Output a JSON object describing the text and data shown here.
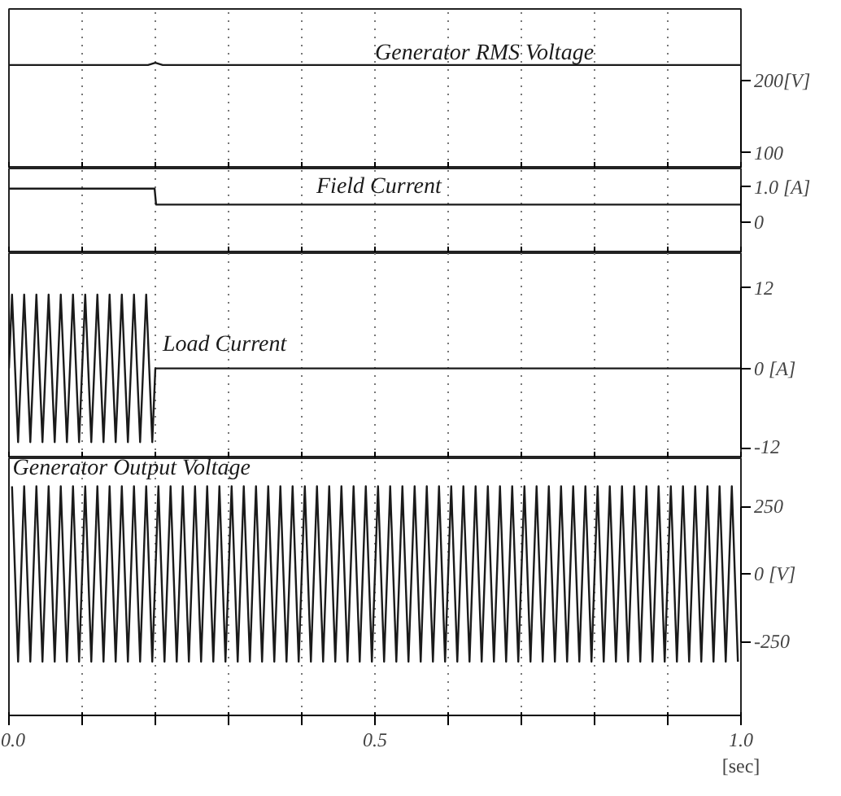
{
  "chart_data": [
    {
      "type": "line",
      "xlim": [
        0,
        1.0
      ],
      "ylim": [
        78,
        300
      ],
      "xticks": [
        {
          "value": 0,
          "label": null
        },
        {
          "value": 0.1,
          "label": null
        },
        {
          "value": 0.2,
          "label": null
        },
        {
          "value": 0.3,
          "label": null
        },
        {
          "value": 0.4,
          "label": null
        },
        {
          "value": 0.5,
          "label": null
        },
        {
          "value": 0.6,
          "label": null
        },
        {
          "value": 0.7,
          "label": null
        },
        {
          "value": 0.8,
          "label": null
        },
        {
          "value": 0.9,
          "label": null
        },
        {
          "value": 1.0,
          "label": null
        }
      ],
      "yticks": [
        100,
        {
          "value": 200,
          "label": "200[V]"
        }
      ],
      "tick_labels": "y",
      "grid": "x",
      "series": [
        {
          "name": "Generator RMS Voltage",
          "color": "#1a1a1a",
          "x": [
            0,
            0.19,
            0.2,
            0.21,
            1.0
          ],
          "values": [
            222,
            222,
            225,
            222,
            222
          ]
        }
      ]
    },
    {
      "type": "line",
      "xlim": [
        0,
        1.0
      ],
      "ylim": [
        -0.87,
        1.52
      ],
      "xticks": [
        {
          "value": 0,
          "label": null
        },
        {
          "value": 0.1,
          "label": null
        },
        {
          "value": 0.2,
          "label": null
        },
        {
          "value": 0.3,
          "label": null
        },
        {
          "value": 0.4,
          "label": null
        },
        {
          "value": 0.5,
          "label": null
        },
        {
          "value": 0.6,
          "label": null
        },
        {
          "value": 0.7,
          "label": null
        },
        {
          "value": 0.8,
          "label": null
        },
        {
          "value": 0.9,
          "label": null
        },
        {
          "value": 1.0,
          "label": null
        }
      ],
      "yticks": [
        0,
        {
          "value": 1.0,
          "label": "1.0 [A]"
        }
      ],
      "tick_labels": "y",
      "grid": "x",
      "series": [
        {
          "name": "Field Current",
          "color": "#1a1a1a",
          "x": [
            0,
            0.199,
            0.201,
            1.0
          ],
          "values": [
            0.95,
            0.95,
            0.5,
            0.5
          ]
        }
      ]
    },
    {
      "type": "line",
      "xlim": [
        0,
        1.0
      ],
      "ylim": [
        -13.4,
        17.2
      ],
      "xticks": [
        {
          "value": 0,
          "label": null
        },
        {
          "value": 0.1,
          "label": null
        },
        {
          "value": 0.2,
          "label": null
        },
        {
          "value": 0.3,
          "label": null
        },
        {
          "value": 0.4,
          "label": null
        },
        {
          "value": 0.5,
          "label": null
        },
        {
          "value": 0.6,
          "label": null
        },
        {
          "value": 0.7,
          "label": null
        },
        {
          "value": 0.8,
          "label": null
        },
        {
          "value": 0.9,
          "label": null
        },
        {
          "value": 1.0,
          "label": null
        }
      ],
      "yticks": [
        -12,
        {
          "value": 0,
          "label": "0 [A]"
        },
        12
      ],
      "tick_labels": "y",
      "grid": "x",
      "series": [
        {
          "name": "Load Current",
          "color": "#1a1a1a",
          "x": [
            0,
            0.0042,
            0.0125,
            0.0208,
            0.0292,
            0.0375,
            0.0458,
            0.0542,
            0.0625,
            0.0708,
            0.0792,
            0.0875,
            0.0958,
            0.1042,
            0.1125,
            0.1208,
            0.1292,
            0.1375,
            0.1458,
            0.1542,
            0.1625,
            0.1708,
            0.1792,
            0.1875,
            0.1958,
            0.2,
            1.0
          ],
          "values": [
            0,
            11,
            -11,
            11,
            -11,
            11,
            -11,
            11,
            -11,
            11,
            -11,
            11,
            -11,
            11,
            -11,
            11,
            -11,
            11,
            -11,
            11,
            -11,
            11,
            -11,
            11,
            -11,
            0,
            0
          ]
        }
      ]
    },
    {
      "type": "line",
      "xlim": [
        0,
        1.0
      ],
      "ylim": [
        -524,
        429
      ],
      "xlabel": "[sec]",
      "xticks": [
        {
          "value": 0,
          "label": "0.0"
        },
        {
          "value": 0.1,
          "label": null
        },
        {
          "value": 0.2,
          "label": null
        },
        {
          "value": 0.3,
          "label": null
        },
        {
          "value": 0.4,
          "label": null
        },
        {
          "value": 0.5,
          "label": "0.5"
        },
        {
          "value": 0.6,
          "label": null
        },
        {
          "value": 0.7,
          "label": null
        },
        {
          "value": 0.8,
          "label": null
        },
        {
          "value": 0.9,
          "label": null
        },
        {
          "value": 1.0,
          "label": "1.0"
        }
      ],
      "yticks": [
        -250,
        {
          "value": 0,
          "label": "0 [V]"
        },
        250
      ],
      "grid": "x",
      "series": [
        {
          "name": "Generator Output Voltage",
          "color": "#1a1a1a",
          "x": [
            0.0042,
            0.0125,
            0.0208,
            0.0292,
            0.0375,
            0.0458,
            0.0542,
            0.0625,
            0.0708,
            0.0792,
            0.0875,
            0.0958,
            0.1042,
            0.1125,
            0.1208,
            0.1292,
            0.1375,
            0.1458,
            0.1542,
            0.1625,
            0.1708,
            0.1792,
            0.1875,
            0.1958,
            0.2042,
            0.2125,
            0.2208,
            0.2292,
            0.2375,
            0.2458,
            0.2542,
            0.2625,
            0.2708,
            0.2792,
            0.2875,
            0.2958,
            0.3042,
            0.3125,
            0.3208,
            0.3292,
            0.3375,
            0.3458,
            0.3542,
            0.3625,
            0.3708,
            0.3792,
            0.3875,
            0.3958,
            0.4042,
            0.4125,
            0.4208,
            0.4292,
            0.4375,
            0.4458,
            0.4542,
            0.4625,
            0.4708,
            0.4792,
            0.4875,
            0.4958,
            0.5042,
            0.5125,
            0.5208,
            0.5292,
            0.5375,
            0.5458,
            0.5542,
            0.5625,
            0.5708,
            0.5792,
            0.5875,
            0.5958,
            0.6042,
            0.6125,
            0.6208,
            0.6292,
            0.6375,
            0.6458,
            0.6542,
            0.6625,
            0.6708,
            0.6792,
            0.6875,
            0.6958,
            0.7042,
            0.7125,
            0.7208,
            0.7292,
            0.7375,
            0.7458,
            0.7542,
            0.7625,
            0.7708,
            0.7792,
            0.7875,
            0.7958,
            0.8042,
            0.8125,
            0.8208,
            0.8292,
            0.8375,
            0.8458,
            0.8542,
            0.8625,
            0.8708,
            0.8792,
            0.8875,
            0.8958,
            0.9042,
            0.9125,
            0.9208,
            0.9292,
            0.9375,
            0.9458,
            0.9542,
            0.9625,
            0.9708,
            0.9792,
            0.9875,
            0.9958
          ],
          "values": [
            325,
            -325,
            325,
            -325,
            325,
            -325,
            325,
            -325,
            325,
            -325,
            325,
            -325,
            325,
            -325,
            325,
            -325,
            325,
            -325,
            325,
            -325,
            325,
            -325,
            325,
            -325,
            325,
            -325,
            325,
            -325,
            325,
            -325,
            325,
            -325,
            325,
            -325,
            325,
            -325,
            325,
            -325,
            325,
            -325,
            325,
            -325,
            325,
            -325,
            325,
            -325,
            325,
            -325,
            325,
            -325,
            325,
            -325,
            325,
            -325,
            325,
            -325,
            325,
            -325,
            325,
            -325,
            325,
            -325,
            325,
            -325,
            325,
            -325,
            325,
            -325,
            325,
            -325,
            325,
            -325,
            325,
            -325,
            325,
            -325,
            325,
            -325,
            325,
            -325,
            325,
            -325,
            325,
            -325,
            325,
            -325,
            325,
            -325,
            325,
            -325,
            325,
            -325,
            325,
            -325,
            325,
            -325,
            325,
            -325,
            325,
            -325,
            325,
            -325,
            325,
            -325,
            325,
            -325,
            325,
            -325,
            325,
            -325,
            325,
            -325,
            325,
            -325,
            325,
            -325,
            325,
            -325,
            325,
            -325
          ]
        }
      ]
    }
  ]
}
